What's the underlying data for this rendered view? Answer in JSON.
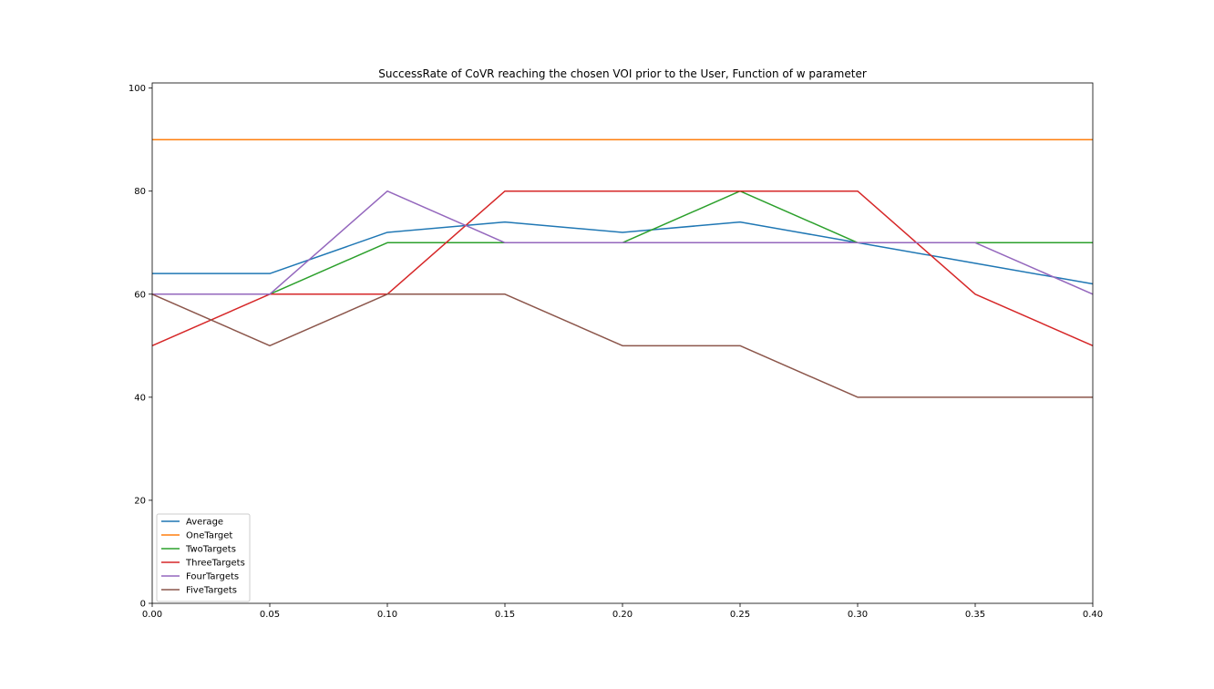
{
  "chart_data": {
    "type": "line",
    "title": "SuccessRate of CoVR reaching the chosen VOI prior to the User, Function of w parameter",
    "xlabel": "",
    "ylabel": "",
    "x": [
      0.0,
      0.05,
      0.1,
      0.15,
      0.2,
      0.25,
      0.3,
      0.35,
      0.4
    ],
    "x_tick_labels": [
      "0.00",
      "0.05",
      "0.10",
      "0.15",
      "0.20",
      "0.25",
      "0.30",
      "0.35",
      "0.40"
    ],
    "y_ticks": [
      0,
      20,
      40,
      60,
      80,
      100
    ],
    "y_tick_labels": [
      "0",
      "20",
      "40",
      "60",
      "80",
      "100"
    ],
    "xlim": [
      0.0,
      0.4
    ],
    "ylim": [
      0,
      101
    ],
    "grid": false,
    "legend_position": "lower-left",
    "series": [
      {
        "name": "Average",
        "color": "#1f77b4",
        "values": [
          64,
          64,
          72,
          74,
          72,
          74,
          70,
          66,
          62
        ]
      },
      {
        "name": "OneTarget",
        "color": "#ff7f0e",
        "values": [
          90,
          90,
          90,
          90,
          90,
          90,
          90,
          90,
          90
        ]
      },
      {
        "name": "TwoTargets",
        "color": "#2ca02c",
        "values": [
          60,
          60,
          70,
          70,
          70,
          80,
          70,
          70,
          70
        ]
      },
      {
        "name": "ThreeTargets",
        "color": "#d62728",
        "values": [
          50,
          60,
          60,
          80,
          80,
          80,
          80,
          60,
          50
        ]
      },
      {
        "name": "FourTargets",
        "color": "#9467bd",
        "values": [
          60,
          60,
          80,
          70,
          70,
          70,
          70,
          70,
          60
        ]
      },
      {
        "name": "FiveTargets",
        "color": "#8c564b",
        "values": [
          60,
          50,
          60,
          60,
          50,
          50,
          40,
          40,
          40
        ]
      }
    ]
  }
}
